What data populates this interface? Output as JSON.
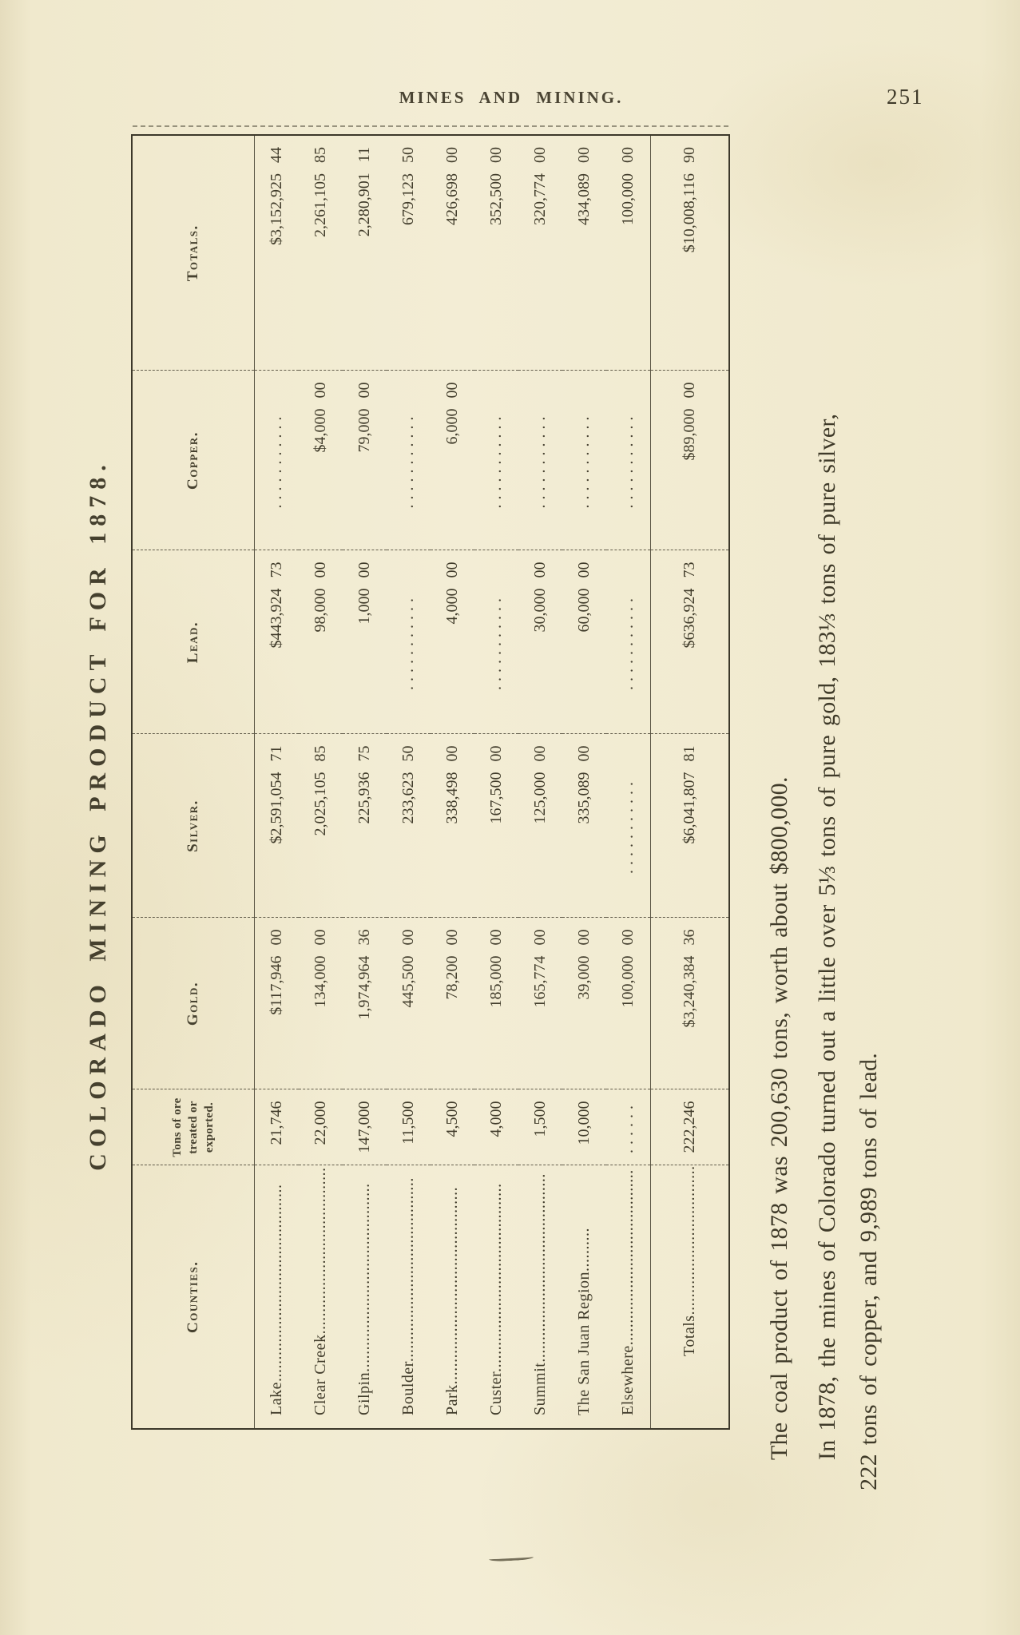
{
  "page": {
    "header": "MINES AND MINING.",
    "page_number": "251"
  },
  "table": {
    "title": "COLORADO MINING PRODUCT FOR 1878.",
    "columns": [
      "Counties.",
      "Tons of ore treated or exported.",
      "Gold.",
      "Silver.",
      "Lead.",
      "Copper.",
      "Totals."
    ],
    "rows": [
      {
        "county": "Lake.............................................",
        "tons": "21,746",
        "gold": "$117,946 00",
        "silver": "$2,591,054 71",
        "lead": "$443,924 73",
        "copper": "...........",
        "total": "$3,152,925 44"
      },
      {
        "county": "Clear Creek......................................",
        "tons": "22,000",
        "gold": "134,000 00",
        "silver": "2,025,105 85",
        "lead": "98,000 00",
        "copper": "$4,000 00",
        "total": "2,261,105 85"
      },
      {
        "county": "Gilpin...........................................",
        "tons": "147,000",
        "gold": "1,974,964 36",
        "silver": "225,936 75",
        "lead": "1,000 00",
        "copper": "79,000 00",
        "total": "2,280,901 11"
      },
      {
        "county": "Boulder..........................................",
        "tons": "11,500",
        "gold": "445,500 00",
        "silver": "233,623 50",
        "lead": "...........",
        "copper": "...........",
        "total": "679,123 50"
      },
      {
        "county": "Park.............................................",
        "tons": "4,500",
        "gold": "78,200 00",
        "silver": "338,498 00",
        "lead": "4,000 00",
        "copper": "6,000 00",
        "total": "426,698 00"
      },
      {
        "county": "Custer...........................................",
        "tons": "4,000",
        "gold": "185,000 00",
        "silver": "167,500 00",
        "lead": "...........",
        "copper": "...........",
        "total": "352,500 00"
      },
      {
        "county": "Summit...........................................",
        "tons": "1,500",
        "gold": "165,774 00",
        "silver": "125,000 00",
        "lead": "30,000 00",
        "copper": "...........",
        "total": "320,774 00"
      },
      {
        "county": "The San Juan Region..........",
        "tons": "10,000",
        "gold": "39,000 00",
        "silver": "335,089 00",
        "lead": "60,000 00",
        "copper": "...........",
        "total": "434,089 00"
      },
      {
        "county": "Elsewhere........................................",
        "tons": "......",
        "gold": "100,000 00",
        "silver": "...........",
        "lead": "...........",
        "copper": "...........",
        "total": "100,000 00"
      }
    ],
    "totals_row": {
      "label": "Totals....................................",
      "tons": "222,246",
      "gold": "$3,240,384 36",
      "silver": "$6,041,807 81",
      "lead": "$636,924 73",
      "copper": "$89,000 00",
      "total": "$10,008,116 90"
    }
  },
  "paragraphs": [
    {
      "lines": [
        "The coal product of 1878 was 200,630 tons, worth about $800,000."
      ]
    },
    {
      "lines": [
        "In 1878, the mines of Colorado turned out a little over 5⅓ tons of pure gold, 183⅓ tons of pure silver,",
        "222 tons of copper, and 9,989 tons of lead."
      ]
    }
  ],
  "colors": {
    "paper": "#f2ecd3",
    "ink": "#413c2b"
  }
}
